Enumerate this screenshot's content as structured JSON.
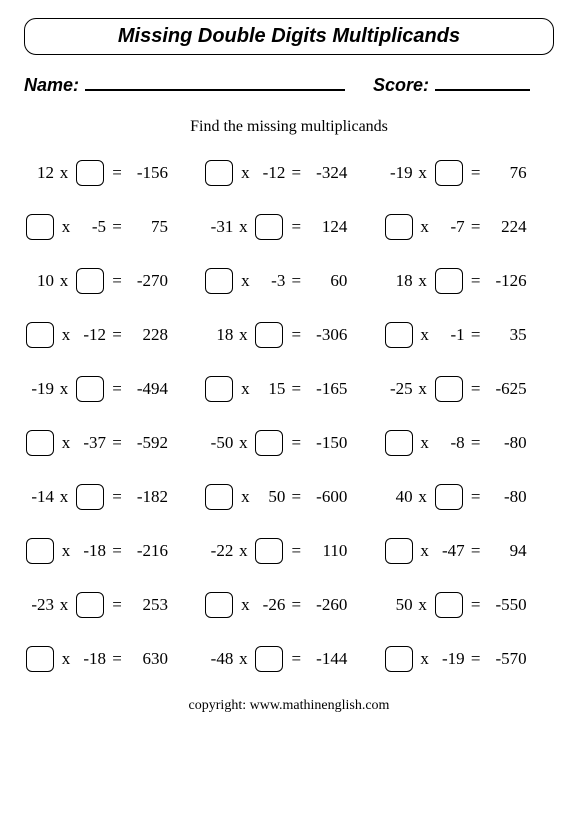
{
  "title": "Missing Double Digits Multiplicands",
  "name_label": "Name:",
  "score_label": "Score:",
  "subtitle": "Find the missing multiplicands",
  "copyright": "copyright:   www.mathinenglish.com",
  "symbols": {
    "times": "x",
    "eq": "="
  },
  "problems": [
    {
      "a": "12",
      "b": "",
      "r": "-156",
      "blank": "b"
    },
    {
      "a": "",
      "b": "-12",
      "r": "-324",
      "blank": "a"
    },
    {
      "a": "-19",
      "b": "",
      "r": "76",
      "blank": "b"
    },
    {
      "a": "",
      "b": "-5",
      "r": "75",
      "blank": "a"
    },
    {
      "a": "-31",
      "b": "",
      "r": "124",
      "blank": "b"
    },
    {
      "a": "",
      "b": "-7",
      "r": "224",
      "blank": "a"
    },
    {
      "a": "10",
      "b": "",
      "r": "-270",
      "blank": "b"
    },
    {
      "a": "",
      "b": "-3",
      "r": "60",
      "blank": "a"
    },
    {
      "a": "18",
      "b": "",
      "r": "-126",
      "blank": "b"
    },
    {
      "a": "",
      "b": "-12",
      "r": "228",
      "blank": "a"
    },
    {
      "a": "18",
      "b": "",
      "r": "-306",
      "blank": "b"
    },
    {
      "a": "",
      "b": "-1",
      "r": "35",
      "blank": "a"
    },
    {
      "a": "-19",
      "b": "",
      "r": "-494",
      "blank": "b"
    },
    {
      "a": "",
      "b": "15",
      "r": "-165",
      "blank": "a"
    },
    {
      "a": "-25",
      "b": "",
      "r": "-625",
      "blank": "b"
    },
    {
      "a": "",
      "b": "-37",
      "r": "-592",
      "blank": "a"
    },
    {
      "a": "-50",
      "b": "",
      "r": "-150",
      "blank": "b"
    },
    {
      "a": "",
      "b": "-8",
      "r": "-80",
      "blank": "a"
    },
    {
      "a": "-14",
      "b": "",
      "r": "-182",
      "blank": "b"
    },
    {
      "a": "",
      "b": "50",
      "r": "-600",
      "blank": "a"
    },
    {
      "a": "40",
      "b": "",
      "r": "-80",
      "blank": "b"
    },
    {
      "a": "",
      "b": "-18",
      "r": "-216",
      "blank": "a"
    },
    {
      "a": "-22",
      "b": "",
      "r": "110",
      "blank": "b"
    },
    {
      "a": "",
      "b": "-47",
      "r": "94",
      "blank": "a"
    },
    {
      "a": "-23",
      "b": "",
      "r": "253",
      "blank": "b"
    },
    {
      "a": "",
      "b": "-26",
      "r": "-260",
      "blank": "a"
    },
    {
      "a": "50",
      "b": "",
      "r": "-550",
      "blank": "b"
    },
    {
      "a": "",
      "b": "-18",
      "r": "630",
      "blank": "a"
    },
    {
      "a": "-48",
      "b": "",
      "r": "-144",
      "blank": "b"
    },
    {
      "a": "",
      "b": "-19",
      "r": "-570",
      "blank": "a"
    }
  ]
}
